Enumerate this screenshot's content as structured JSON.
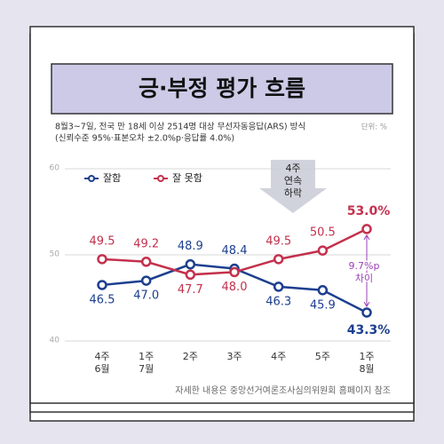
{
  "chart_data": {
    "type": "line",
    "title": "긍·부정 평가 흐름",
    "subtitle": [
      "8월3~7일, 전국 만 18세 이상 2514명 대상 무선자동응답(ARS) 방식",
      "(신뢰수준 95%·표본오차 ±2.0%p·응답률 4.0%)"
    ],
    "unit": "단위: %",
    "categories": [
      [
        "4주",
        "6월"
      ],
      [
        "1주",
        "7월"
      ],
      [
        "2주"
      ],
      [
        "3주"
      ],
      [
        "4주"
      ],
      [
        "5주"
      ],
      [
        "1주",
        "8월"
      ]
    ],
    "series": [
      {
        "name": "잘함",
        "color": "#1c3f8f",
        "values": [
          46.5,
          47.0,
          48.9,
          48.4,
          46.3,
          45.9,
          43.3
        ],
        "value_labels": [
          "46.5",
          "47.0",
          "48.9",
          "48.4",
          "46.3",
          "45.9",
          "43.3%"
        ]
      },
      {
        "name": "잘 못함",
        "color": "#c3314c",
        "values": [
          49.5,
          49.2,
          47.7,
          48.0,
          49.5,
          50.5,
          53.0
        ],
        "value_labels": [
          "49.5",
          "49.2",
          "47.7",
          "48.0",
          "49.5",
          "50.5",
          "53.0%"
        ]
      }
    ],
    "ylim": [
      40,
      60
    ],
    "yticks": [
      40,
      50,
      60
    ],
    "grid": true,
    "annotations": [
      [
        "4주",
        "연속",
        "하락"
      ],
      [
        "9.7%p",
        "차이"
      ]
    ],
    "source": "자세한 내용은 중앙선거여론조사심의위원회 홈페이지 참조"
  }
}
